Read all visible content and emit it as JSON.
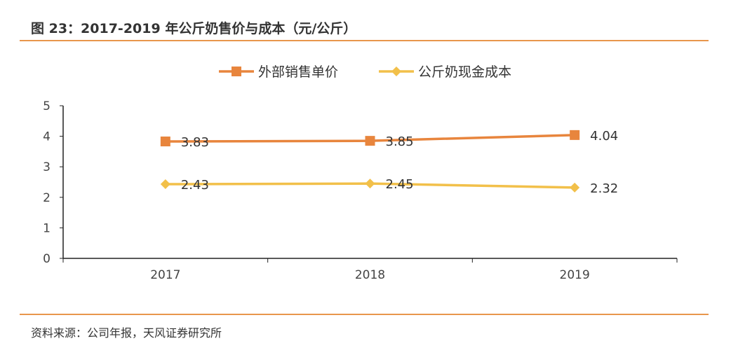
{
  "header": {
    "title": "图 23：2017-2019 年公斤奶售价与成本（元/公斤）"
  },
  "footer": {
    "source": "资料来源：公司年报，天风证券研究所"
  },
  "colors": {
    "accent_rule": "#e8964c",
    "series_1": "#e8853d",
    "series_2": "#f2c04a",
    "axis": "#222222",
    "label": "#444444"
  },
  "chart_data": {
    "type": "line",
    "title": "",
    "xlabel": "",
    "ylabel": "",
    "categories": [
      "2017",
      "2018",
      "2019"
    ],
    "ylim": [
      0,
      5
    ],
    "yticks": [
      0,
      1,
      2,
      3,
      4,
      5
    ],
    "grid": false,
    "legend_position": "top",
    "series": [
      {
        "name": "外部销售单价",
        "values": [
          3.83,
          3.85,
          4.04
        ],
        "labels": [
          "3.83",
          "3.85",
          "4.04"
        ],
        "marker": "square",
        "color": "#e8853d"
      },
      {
        "name": "公斤奶现金成本",
        "values": [
          2.43,
          2.45,
          2.32
        ],
        "labels": [
          "2.43",
          "2.45",
          "2.32"
        ],
        "marker": "diamond",
        "color": "#f2c04a"
      }
    ]
  }
}
